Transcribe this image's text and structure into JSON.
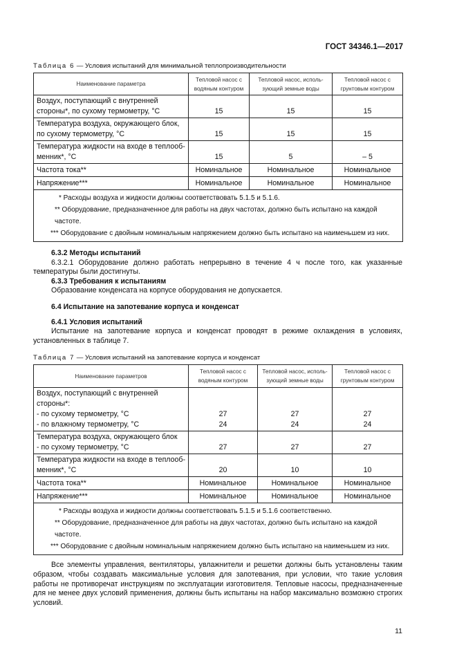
{
  "header": {
    "standard": "ГОСТ 34346.1—2017"
  },
  "table6": {
    "caption_label": "Таблица 6",
    "caption_text": " — Условия испытаний для минимальной теплопроизводительности",
    "columns": [
      "Наименование параметра",
      "Тепловой насос с водяным контуром",
      "Тепловой насос, исполь-зующий земные воды",
      "Тепловой насос с грунтовым контуром"
    ],
    "rows": [
      {
        "name": "Воздух, поступающий с внутренней стороны*, по сухому термометру, °С",
        "values": [
          "15",
          "15",
          "15"
        ]
      },
      {
        "name": "Температура воздуха, окружающего блок, по сухому термометру, °С",
        "values": [
          "15",
          "15",
          "15"
        ]
      },
      {
        "name": "Температура жидкости на входе в теплооб-менник*, °С",
        "values": [
          "15",
          "5",
          "– 5"
        ]
      },
      {
        "name": "Частота тока**",
        "values": [
          "Номинальное",
          "Номинальное",
          "Номинальное"
        ]
      },
      {
        "name": "Напряжение***",
        "values": [
          "Номинальное",
          "Номинальное",
          "Номинальное"
        ]
      }
    ],
    "footnotes": [
      "* Расходы воздуха и жидкости должны соответствовать 5.1.5 и 5.1.6.",
      "** Оборудование, предназначенное для работы на двух частотах, должно быть испытано на каждой частоте.",
      "*** Оборудование с двойным номинальным напряжением должно быть испытано на наименьшем из них."
    ]
  },
  "sections": {
    "s632_title": "6.3.2 Методы испытаний",
    "s6321": "6.3.2.1 Оборудование должно работать непрерывно в течение 4 ч после того, как указанные температуры были достигнуты.",
    "s633_title": "6.3.3 Требования к испытаниям",
    "s633": "Образование конденсата на корпусе оборудования не допускается.",
    "s64_title": "6.4 Испытание на запотевание корпуса и конденсат",
    "s641_title": "6.4.1 Условия испытаний",
    "s641": "Испытание на запотевание корпуса и конденсат проводят в режиме охлаждения в условиях, установленных в таблице 7."
  },
  "table7": {
    "caption_label": "Таблица 7",
    "caption_text": " — Условия испытаний на запотевание корпуса и конденсат",
    "columns": [
      "Наименование параметров",
      "Тепловой насос с водяным контуром",
      "Тепловой насос, исполь-зующий земные воды",
      "Тепловой насос с грунтовым контуром"
    ],
    "row1": {
      "name": "Воздух, поступающий с внутренней стороны*:",
      "sub1": "- по сухому термометру, °С",
      "sub2": "- по влажному термометру, °С",
      "v1": [
        "27",
        "27",
        "27"
      ],
      "v2": [
        "24",
        "24",
        "24"
      ]
    },
    "row2": {
      "name": "Температура воздуха, окружающего блок",
      "sub1": "- по сухому термометру, °С",
      "values": [
        "27",
        "27",
        "27"
      ]
    },
    "row3": {
      "name": "Температура жидкости на входе в теплооб-менник*, °С",
      "values": [
        "20",
        "10",
        "10"
      ]
    },
    "row4": {
      "name": "Частота тока**",
      "values": [
        "Номинальное",
        "Номинальное",
        "Номинальное"
      ]
    },
    "row5": {
      "name": "Напряжение***",
      "values": [
        "Номинальное",
        "Номинальное",
        "Номинальное"
      ]
    },
    "footnotes": [
      "* Расходы воздуха и жидкости должны соответствовать 5.1.5 и 5.1.6 соответственно.",
      "** Оборудование, предназначенное для работы на двух частотах, должно быть испытано на каждой частоте.",
      "*** Оборудование с двойным номинальным напряжением должно быть испытано на наименьшем из них."
    ]
  },
  "closing_paragraph": "Все элементы управления, вентиляторы, увлажнители и решетки должны быть установлены таким образом, чтобы создавать максимальные условия для запотевания, при условии, что такие условия работы не противоречат инструкциям по эксплуатации изготовителя. Тепловые насосы, предназначенные для не менее двух условий применения, должны быть испытаны на набор максимально возможно строгих условий.",
  "page_number": "11"
}
